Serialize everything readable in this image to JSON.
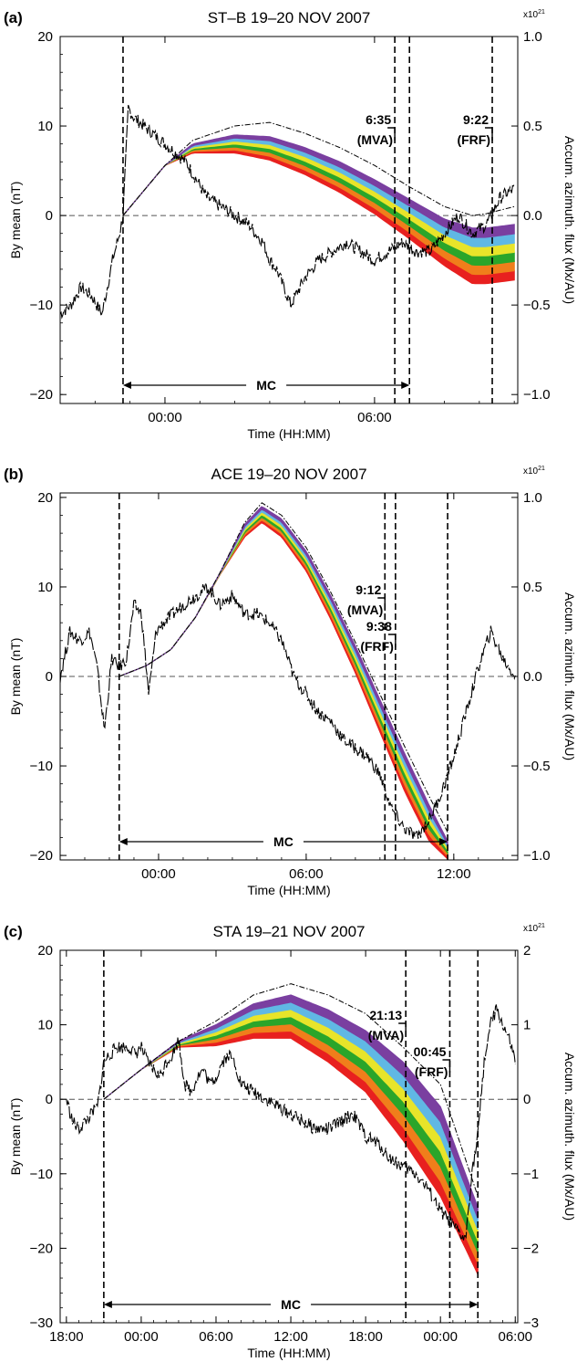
{
  "chart_data": [
    {
      "type": "line",
      "panel_label": "(a)",
      "title": "ST–B 19–20 NOV 2007",
      "xlabel": "Time (HH:MM)",
      "ylabel": "By mean (nT)",
      "ylabel_right": "Accum. azimuth. flux (Mx/AU)",
      "right_exponent_base": "x10",
      "right_exponent_power": "21",
      "x_unit": "hours from 00:00 on first day",
      "xlim": [
        -3,
        10.1
      ],
      "ylim": [
        -21,
        20
      ],
      "ylim_right": [
        -1.05,
        1.0
      ],
      "xticks": [
        {
          "value": 0,
          "label": "00:00"
        },
        {
          "value": 6,
          "label": "06:00"
        }
      ],
      "yticks": [
        {
          "value": -20,
          "label": "−20"
        },
        {
          "value": -10,
          "label": "−10"
        },
        {
          "value": 0,
          "label": "0"
        },
        {
          "value": 10,
          "label": "10"
        },
        {
          "value": 20,
          "label": "20"
        }
      ],
      "yticks_right": [
        {
          "value": -1.0,
          "label": "−1.0"
        },
        {
          "value": -0.5,
          "label": "−0.5"
        },
        {
          "value": 0.0,
          "label": "0.0"
        },
        {
          "value": 0.5,
          "label": "0.5"
        },
        {
          "value": 1.0,
          "label": "1.0"
        }
      ],
      "zero_line": true,
      "by_mean": {
        "x": [
          -3.0,
          -2.7,
          -2.4,
          -2.1,
          -1.8,
          -1.5,
          -1.3,
          -1.2,
          -1.05,
          -0.9,
          -0.6,
          -0.3,
          0.0,
          0.3,
          0.6,
          0.9,
          1.2,
          1.6,
          2.0,
          2.4,
          2.8,
          3.0,
          3.2,
          3.6,
          4.0,
          4.4,
          4.8,
          5.2,
          5.6,
          6.0,
          6.4,
          6.8,
          7.2,
          7.6,
          8.0,
          8.4,
          8.8,
          9.2,
          9.6,
          10.0
        ],
        "y": [
          -11,
          -10,
          -8,
          -9,
          -11,
          -5,
          -2,
          0,
          12,
          11,
          10,
          9,
          8,
          7,
          6,
          4,
          2,
          1,
          0,
          -1,
          -3,
          -5,
          -6,
          -10,
          -7,
          -5,
          -4,
          -3,
          -4,
          -5,
          -4,
          -3,
          -4,
          -4,
          -2,
          0,
          -2,
          -1,
          2,
          3
        ]
      },
      "flux_bands": {
        "x": [
          -1.2,
          0.0,
          0.8,
          2.0,
          3.0,
          4.0,
          5.0,
          6.0,
          7.0,
          8.0,
          8.8,
          9.2,
          10.0
        ],
        "upper_envelope": [
          0.0,
          0.28,
          0.42,
          0.5,
          0.52,
          0.46,
          0.38,
          0.28,
          0.16,
          0.05,
          0.0,
          0.01,
          0.05
        ],
        "top": [
          0.0,
          0.28,
          0.4,
          0.45,
          0.44,
          0.38,
          0.3,
          0.2,
          0.09,
          -0.02,
          -0.07,
          -0.07,
          -0.05
        ],
        "bottom": [
          0.0,
          0.28,
          0.35,
          0.35,
          0.31,
          0.23,
          0.13,
          0.01,
          -0.13,
          -0.28,
          -0.38,
          -0.38,
          -0.36
        ]
      },
      "boundaries": [
        -1.2,
        6.58,
        7.0,
        9.37
      ],
      "annotations": [
        {
          "label": "6:35",
          "sub": "(MVA)",
          "x": 6.58
        },
        {
          "label": "9:22",
          "sub": "(FRF)",
          "x": 9.37
        }
      ],
      "mc": {
        "label": "MC",
        "x_start": -1.2,
        "x_end": 7.0
      }
    },
    {
      "type": "line",
      "panel_label": "(b)",
      "title": "ACE 19–20 NOV 2007",
      "xlabel": "Time (HH:MM)",
      "ylabel": "By mean (nT)",
      "ylabel_right": "Accum. azimuth. flux (Mx/AU)",
      "right_exponent_base": "x10",
      "right_exponent_power": "21",
      "x_unit": "hours from 00:00 on first day",
      "xlim": [
        -4,
        14.6
      ],
      "ylim": [
        -20.5,
        20.5
      ],
      "ylim_right": [
        -1.025,
        1.025
      ],
      "xticks": [
        {
          "value": 0,
          "label": "00:00"
        },
        {
          "value": 6,
          "label": "06:00"
        },
        {
          "value": 12,
          "label": "12:00"
        }
      ],
      "yticks": [
        {
          "value": -20,
          "label": "−20"
        },
        {
          "value": -10,
          "label": "−10"
        },
        {
          "value": 0,
          "label": "0"
        },
        {
          "value": 10,
          "label": "10"
        },
        {
          "value": 20,
          "label": "20"
        }
      ],
      "yticks_right": [
        {
          "value": -1.0,
          "label": "−1.0"
        },
        {
          "value": -0.5,
          "label": "−0.5"
        },
        {
          "value": 0.0,
          "label": "0.0"
        },
        {
          "value": 0.5,
          "label": "0.5"
        },
        {
          "value": 1.0,
          "label": "1.0"
        }
      ],
      "zero_line": true,
      "by_mean": {
        "x": [
          -4.0,
          -3.6,
          -3.2,
          -2.8,
          -2.5,
          -2.2,
          -1.9,
          -1.6,
          -1.3,
          -1.0,
          -0.7,
          -0.4,
          -0.1,
          0.2,
          0.6,
          1.0,
          1.5,
          2.0,
          2.5,
          3.0,
          3.5,
          4.0,
          4.5,
          5.0,
          5.5,
          6.0,
          6.5,
          7.0,
          7.5,
          8.0,
          8.5,
          9.0,
          9.5,
          10.0,
          10.5,
          11.0,
          11.5,
          12.0,
          12.5,
          13.0,
          13.5,
          14.0,
          14.5
        ],
        "y": [
          0,
          5,
          4,
          5,
          1,
          -6,
          2,
          1,
          2,
          8,
          7,
          -2,
          5,
          6,
          7,
          8,
          9,
          10,
          8,
          9,
          7,
          7,
          6,
          4,
          0,
          -2,
          -4,
          -5,
          -7,
          -8,
          -9,
          -11,
          -15,
          -17,
          -18,
          -16,
          -13,
          -9,
          -4,
          1,
          5,
          2,
          0
        ]
      },
      "flux_bands": {
        "x": [
          -1.6,
          -0.5,
          0.5,
          1.5,
          2.5,
          3.5,
          4.2,
          5.0,
          6.0,
          7.0,
          8.0,
          9.0,
          10.0,
          11.0,
          11.75
        ],
        "upper_envelope": [
          0.0,
          0.06,
          0.15,
          0.33,
          0.58,
          0.86,
          0.97,
          0.9,
          0.72,
          0.47,
          0.19,
          -0.1,
          -0.39,
          -0.67,
          -0.87
        ],
        "top": [
          0.0,
          0.06,
          0.15,
          0.33,
          0.58,
          0.85,
          0.95,
          0.88,
          0.7,
          0.45,
          0.17,
          -0.13,
          -0.43,
          -0.72,
          -0.92
        ],
        "bottom": [
          0.0,
          0.06,
          0.15,
          0.33,
          0.57,
          0.78,
          0.86,
          0.78,
          0.59,
          0.32,
          0.02,
          -0.31,
          -0.64,
          -0.92,
          -1.02
        ]
      },
      "boundaries": [
        -1.6,
        9.2,
        9.63,
        11.75
      ],
      "annotations": [
        {
          "label": "9:12",
          "sub": "(MVA)",
          "x": 9.2
        },
        {
          "label": "9:38",
          "sub": "(FRF)",
          "x": 9.63
        }
      ],
      "mc": {
        "label": "MC",
        "x_start": -1.6,
        "x_end": 11.75
      }
    },
    {
      "type": "line",
      "panel_label": "(c)",
      "title": "STA 19–21 NOV 2007",
      "xlabel": "Time (HH:MM)",
      "ylabel": "By mean (nT)",
      "ylabel_right": "Accum. azimuth. flux (Mx/AU)",
      "right_exponent_base": "x10",
      "right_exponent_power": "21",
      "x_unit": "hours from 00:00 on first day",
      "xlim": [
        -6.5,
        30.2
      ],
      "ylim": [
        -30,
        20
      ],
      "ylim_right": [
        -3,
        2
      ],
      "xticks": [
        {
          "value": -6,
          "label": "18:00"
        },
        {
          "value": 0,
          "label": "00:00"
        },
        {
          "value": 6,
          "label": "06:00"
        },
        {
          "value": 12,
          "label": "12:00"
        },
        {
          "value": 18,
          "label": "18:00"
        },
        {
          "value": 24,
          "label": "00:00"
        },
        {
          "value": 30,
          "label": "06:00"
        }
      ],
      "yticks": [
        {
          "value": -30,
          "label": "−30"
        },
        {
          "value": -20,
          "label": "−20"
        },
        {
          "value": -10,
          "label": "−10"
        },
        {
          "value": 0,
          "label": "0"
        },
        {
          "value": 10,
          "label": "10"
        },
        {
          "value": 20,
          "label": "20"
        }
      ],
      "yticks_right": [
        {
          "value": -3,
          "label": "−3"
        },
        {
          "value": -2,
          "label": "−2"
        },
        {
          "value": -1,
          "label": "−1"
        },
        {
          "value": 0,
          "label": "0"
        },
        {
          "value": 1,
          "label": "1"
        },
        {
          "value": 2,
          "label": "2"
        }
      ],
      "zero_line": true,
      "by_mean": {
        "x": [
          -6.0,
          -5.5,
          -5.0,
          -4.5,
          -4.0,
          -3.5,
          -3.0,
          -2.5,
          -2.0,
          -1.5,
          -1.0,
          -0.5,
          0.0,
          0.5,
          1.0,
          1.5,
          2.0,
          2.5,
          3.0,
          3.5,
          4.0,
          4.5,
          5.0,
          5.5,
          6.0,
          6.5,
          7.0,
          7.5,
          8.0,
          9.0,
          10.0,
          11.0,
          12.0,
          13.0,
          14.0,
          15.0,
          16.0,
          17.0,
          18.0,
          19.0,
          20.0,
          21.0,
          22.0,
          23.0,
          24.0,
          25.0,
          26.0,
          26.5,
          27.0,
          27.5,
          28.0,
          28.5,
          29.0,
          29.5,
          30.0
        ],
        "y": [
          0,
          -3,
          -4,
          -3,
          -2,
          -1,
          5,
          6,
          7,
          7,
          7,
          6,
          7,
          5,
          4,
          3,
          5,
          6,
          8,
          2,
          1,
          3,
          4,
          2,
          3,
          5,
          6,
          5,
          2,
          1,
          0,
          -1,
          -2,
          -3,
          -4,
          -4,
          -3,
          -2,
          -5,
          -6,
          -8,
          -9,
          -10,
          -12,
          -15,
          -17,
          -19,
          -10,
          -5,
          5,
          10,
          12,
          10,
          8,
          5
        ]
      },
      "flux_bands": {
        "x": [
          -3.0,
          0.0,
          3.0,
          6.0,
          9.0,
          12.0,
          15.0,
          18.0,
          21.0,
          24.0,
          27.0
        ],
        "upper_envelope": [
          0.0,
          0.4,
          0.78,
          1.05,
          1.4,
          1.55,
          1.4,
          1.15,
          0.7,
          0.2,
          -1.3
        ],
        "top": [
          0.0,
          0.4,
          0.78,
          1.0,
          1.28,
          1.4,
          1.2,
          0.92,
          0.5,
          -0.1,
          -1.45
        ],
        "bottom": [
          0.0,
          0.4,
          0.7,
          0.72,
          0.82,
          0.82,
          0.5,
          0.1,
          -0.55,
          -1.3,
          -2.35
        ]
      },
      "boundaries": [
        -3.0,
        21.22,
        24.75,
        27.0
      ],
      "annotations": [
        {
          "label": "21:13",
          "sub": "(MVA)",
          "x": 21.22
        },
        {
          "label": "00:45",
          "sub": "(FRF)",
          "x": 24.75
        }
      ],
      "mc": {
        "label": "MC",
        "x_start": -3.0,
        "x_end": 27.0
      }
    }
  ],
  "band_colors": [
    "#e8201f",
    "#f07e1b",
    "#2aa52a",
    "#e8e42a",
    "#60b8e4",
    "#7a3fa0"
  ],
  "line_color": "#000000"
}
